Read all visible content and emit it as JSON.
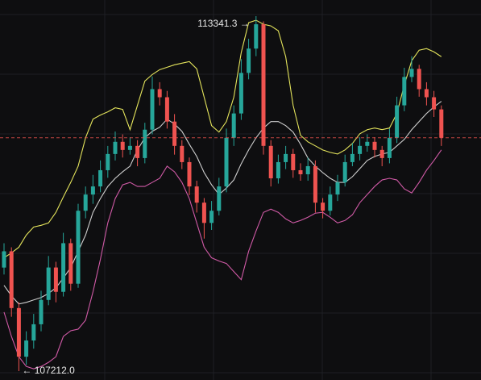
{
  "chart_data": {
    "type": "candlestick",
    "up_color": "#26a69a",
    "down_color": "#ef5350",
    "open": [
      109000,
      109281,
      108301,
      107461,
      107741,
      108021,
      108441,
      109001,
      108581,
      109421,
      108721,
      109981,
      110261,
      110401,
      110681,
      110961,
      111171,
      111031,
      111101,
      110891,
      111381,
      112081,
      111941,
      111521,
      111101,
      110821,
      110401,
      110121,
      109771,
      109981,
      110401,
      111241,
      111661,
      112361,
      112781,
      113201,
      111101,
      110541,
      110821,
      110961,
      110681,
      110611,
      110751,
      110121,
      109981,
      110261,
      110471,
      110821,
      110961,
      111101,
      111171,
      111031,
      110891,
      111241,
      111801,
      112291,
      112431,
      112081,
      111941,
      111731
    ],
    "high": [
      109420,
      109350,
      108401,
      107900,
      108200,
      108600,
      109200,
      109100,
      109600,
      109500,
      110100,
      110400,
      110600,
      110850,
      111100,
      111350,
      111300,
      111250,
      111200,
      111500,
      112300,
      112200,
      112050,
      111650,
      111200,
      110900,
      110500,
      110200,
      110150,
      110550,
      111400,
      111800,
      112600,
      112950,
      113341.3,
      113250,
      111200,
      110950,
      111100,
      111050,
      110800,
      110900,
      110850,
      110200,
      110400,
      110600,
      110950,
      111150,
      111250,
      111300,
      111250,
      111100,
      111400,
      111950,
      112450,
      112650,
      112500,
      112200,
      112050,
      111800
    ],
    "low": [
      108880,
      108150,
      107212.0,
      107320,
      107600,
      107900,
      108350,
      108400,
      108500,
      108600,
      108650,
      109850,
      110100,
      110300,
      110550,
      110850,
      110900,
      110950,
      110750,
      110800,
      111300,
      111800,
      111400,
      110950,
      110700,
      110250,
      109950,
      109500,
      109650,
      109900,
      110300,
      111100,
      111550,
      112250,
      112650,
      110950,
      110400,
      110450,
      110700,
      110550,
      110500,
      110500,
      109950,
      109850,
      109900,
      110150,
      110400,
      110750,
      110850,
      111000,
      110900,
      110750,
      110800,
      111150,
      111700,
      112200,
      111950,
      111800,
      111600,
      111100
    ],
    "close": [
      109281,
      108301,
      107461,
      107741,
      108021,
      108441,
      109001,
      108581,
      109421,
      108721,
      109981,
      110261,
      110401,
      110681,
      110961,
      111171,
      111031,
      111101,
      110891,
      111381,
      112081,
      111941,
      111521,
      111101,
      110821,
      110401,
      110121,
      109771,
      109981,
      110401,
      111241,
      111661,
      112361,
      112781,
      113201,
      111101,
      110541,
      110821,
      110961,
      110681,
      110611,
      110751,
      110121,
      109981,
      110261,
      110471,
      110821,
      110961,
      111101,
      111171,
      111031,
      110891,
      111241,
      111801,
      112291,
      112431,
      112081,
      111941,
      111731,
      111241
    ],
    "series": [
      {
        "color": "#e4e45c",
        "values": [
          109169,
          109253,
          109351,
          109561,
          109701,
          109729,
          109771,
          109953,
          110219,
          110471,
          110751,
          111241,
          111563,
          111633,
          111689,
          111759,
          111731,
          111381,
          111801,
          112221,
          112333,
          112417,
          112459,
          112501,
          112529,
          112557,
          112431,
          111941,
          111451,
          111339,
          111521,
          111941,
          112711,
          113229,
          113271,
          113201,
          113173,
          113089,
          112641,
          111801,
          111283,
          111171,
          111101,
          111031,
          110989,
          110961,
          111031,
          111143,
          111311,
          111381,
          111409,
          111381,
          111409,
          111661,
          112151,
          112571,
          112753,
          112781,
          112725,
          112641
        ]
      },
      {
        "color": "#cfcfcf",
        "values": [
          108693,
          108511,
          108371,
          108399,
          108441,
          108483,
          108553,
          108651,
          108819,
          109001,
          109281,
          109561,
          109953,
          110191,
          110401,
          110541,
          110653,
          110751,
          111031,
          111241,
          111353,
          111423,
          111563,
          111479,
          111353,
          111129,
          110919,
          110639,
          110429,
          110261,
          110373,
          110513,
          110793,
          111031,
          111241,
          111409,
          111521,
          111521,
          111451,
          111339,
          111129,
          110891,
          110751,
          110639,
          110541,
          110471,
          110471,
          110569,
          110709,
          110849,
          110919,
          110961,
          110989,
          111101,
          111213,
          111381,
          111521,
          111661,
          111773,
          111871
        ]
      },
      {
        "color": "#d05aa6",
        "values": [
          108231,
          107811,
          107461,
          107293,
          107251,
          107293,
          107363,
          107461,
          107811,
          107909,
          107937,
          108091,
          108581,
          109141,
          109771,
          110191,
          110429,
          110471,
          110401,
          110401,
          110471,
          110541,
          110751,
          110653,
          110471,
          110191,
          109771,
          109351,
          109169,
          109113,
          109071,
          108931,
          108791,
          109281,
          109631,
          109953,
          110009,
          109953,
          109841,
          109771,
          109813,
          109869,
          109939,
          109953,
          109869,
          109771,
          109813,
          109911,
          110121,
          110261,
          110401,
          110513,
          110541,
          110513,
          110359,
          110289,
          110471,
          110681,
          110849,
          111031
        ]
      }
    ],
    "annotations": [
      "113341.3 →",
      "← 107212.0"
    ]
  }
}
